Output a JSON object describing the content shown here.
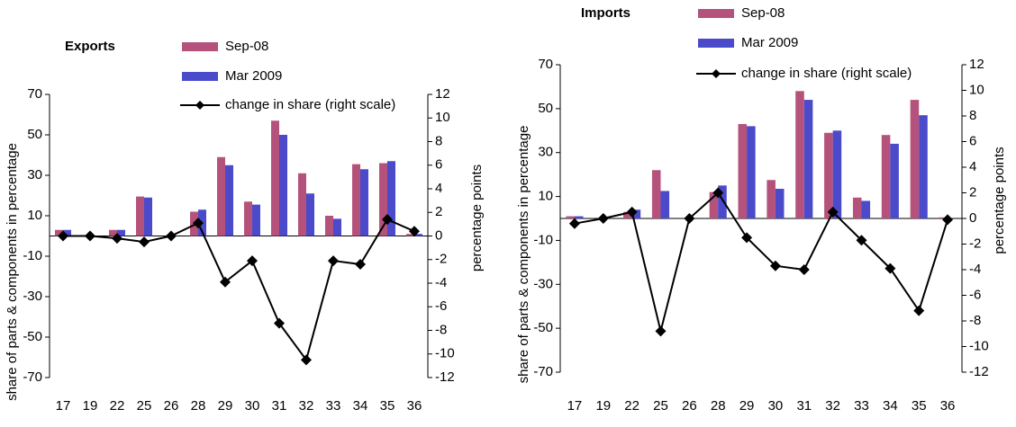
{
  "chart_data": [
    {
      "type": "bar",
      "title": "Exports",
      "y_label": "share of parts & components in percentage",
      "y2_label": "percentage points",
      "categories": [
        "17",
        "19",
        "22",
        "25",
        "26",
        "28",
        "29",
        "30",
        "31",
        "32",
        "33",
        "34",
        "35",
        "36"
      ],
      "series": [
        {
          "name": "Sep-08",
          "color": "#b5527c",
          "values": [
            3,
            0,
            3,
            19.5,
            0,
            12,
            39,
            17,
            57,
            31,
            10,
            35.5,
            36,
            1
          ]
        },
        {
          "name": "Mar 2009",
          "color": "#4a4acb",
          "values": [
            3,
            0,
            3,
            19,
            0,
            13,
            35,
            15.5,
            50,
            21,
            8.5,
            33,
            37,
            1
          ]
        },
        {
          "name": "change in share (right scale)",
          "color": "#000000",
          "type": "line",
          "axis": "y2",
          "values": [
            0,
            0,
            -0.2,
            -0.5,
            0,
            1.1,
            -3.9,
            -2.1,
            -7.4,
            -10.5,
            -2.1,
            -2.4,
            1.4,
            0.4
          ]
        }
      ],
      "ylim": [
        -70,
        70
      ],
      "yticks": [
        70,
        50,
        30,
        10,
        -10,
        -30,
        -50,
        -70
      ],
      "y2lim": [
        -12,
        12
      ],
      "y2ticks": [
        12,
        10,
        8,
        6,
        4,
        2,
        0,
        -2,
        -4,
        -6,
        -8,
        -10,
        -12
      ]
    },
    {
      "type": "bar",
      "title": "Imports",
      "y_label": "share of parts & components in percentage",
      "y2_label": "percentage points",
      "categories": [
        "17",
        "19",
        "22",
        "25",
        "26",
        "28",
        "29",
        "30",
        "31",
        "32",
        "33",
        "34",
        "35",
        "36"
      ],
      "series": [
        {
          "name": "Sep-08",
          "color": "#b5527c",
          "values": [
            1,
            0,
            3,
            22,
            0,
            12,
            43,
            17.5,
            58,
            39,
            9.5,
            38,
            54,
            0.5
          ]
        },
        {
          "name": "Mar 2009",
          "color": "#4a4acb",
          "values": [
            1,
            0,
            4,
            12.5,
            0,
            15,
            42,
            13.5,
            54,
            40,
            8,
            34,
            47,
            0
          ]
        },
        {
          "name": "change in share (right scale)",
          "color": "#000000",
          "type": "line",
          "axis": "y2",
          "values": [
            -0.4,
            0,
            0.5,
            -8.8,
            0,
            2,
            -1.5,
            -3.7,
            -4,
            0.5,
            -1.7,
            -3.9,
            -7.2,
            -0.1
          ]
        }
      ],
      "ylim": [
        -70,
        70
      ],
      "yticks": [
        70,
        50,
        30,
        10,
        -10,
        -30,
        -50,
        -70
      ],
      "y2lim": [
        -12,
        12
      ],
      "y2ticks": [
        12,
        10,
        8,
        6,
        4,
        2,
        0,
        -2,
        -4,
        -6,
        -8,
        -10,
        -12
      ]
    }
  ]
}
